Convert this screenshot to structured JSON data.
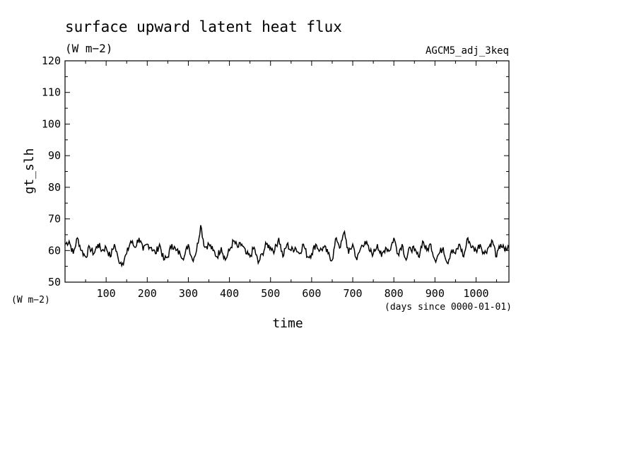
{
  "chart_data": {
    "type": "line",
    "title": "surface upward latent heat flux",
    "subtitle": "(W m−2)",
    "dataset_label": "AGCM5_adj_3keq",
    "xlabel": "time",
    "x_unit": "(days since 0000-01-01)",
    "ylabel": "gt_slh",
    "y_unit": "(W m−2)",
    "xlim": [
      0,
      1080
    ],
    "ylim": [
      50,
      120
    ],
    "x_ticks": [
      "100",
      "200",
      "300",
      "400",
      "500",
      "600",
      "700",
      "800",
      "900",
      "1000"
    ],
    "y_ticks": [
      "50",
      "60",
      "70",
      "80",
      "90",
      "100",
      "110",
      "120"
    ],
    "grid": false,
    "series": [
      {
        "x": [
          0,
          10,
          20,
          30,
          40,
          50,
          60,
          70,
          80,
          90,
          100,
          110,
          120,
          130,
          140,
          150,
          160,
          170,
          180,
          190,
          200,
          210,
          220,
          230,
          240,
          250,
          260,
          270,
          280,
          290,
          300,
          310,
          320,
          330,
          340,
          350,
          360,
          370,
          380,
          390,
          400,
          410,
          420,
          430,
          440,
          450,
          460,
          470,
          480,
          490,
          500,
          510,
          520,
          530,
          540,
          550,
          560,
          570,
          580,
          590,
          600,
          610,
          620,
          630,
          640,
          650,
          660,
          670,
          680,
          690,
          700,
          710,
          720,
          730,
          740,
          750,
          760,
          770,
          780,
          790,
          800,
          810,
          820,
          830,
          840,
          850,
          860,
          870,
          880,
          890,
          900,
          910,
          920,
          930,
          940,
          950,
          960,
          970,
          980,
          990,
          1000,
          1010,
          1020,
          1030,
          1040,
          1050,
          1060,
          1070,
          1080
        ],
        "y": [
          62,
          63,
          59,
          64,
          60,
          58,
          61,
          59,
          62,
          60,
          61,
          58,
          62,
          57,
          56,
          59,
          63,
          61,
          64,
          60,
          62,
          61,
          59,
          62,
          57,
          58,
          62,
          60,
          59,
          58,
          62,
          57,
          60,
          68,
          61,
          62,
          60,
          58,
          61,
          57,
          60,
          63,
          61,
          62,
          59,
          58,
          61,
          56,
          59,
          62,
          61,
          60,
          64,
          58,
          62,
          60,
          61,
          59,
          62,
          58,
          59,
          62,
          60,
          61,
          59,
          57,
          64,
          61,
          66,
          59,
          62,
          57,
          61,
          63,
          60,
          59,
          62,
          58,
          61,
          60,
          64,
          59,
          62,
          57,
          61,
          60,
          58,
          63,
          60,
          62,
          57,
          59,
          61,
          56,
          60,
          59,
          62,
          58,
          64,
          61,
          60,
          62,
          59,
          61,
          63,
          58,
          62,
          60,
          61
        ]
      }
    ]
  }
}
